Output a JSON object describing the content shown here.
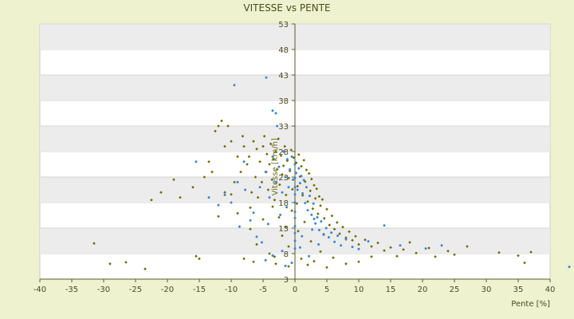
{
  "chart_data": {
    "type": "scatter",
    "title": "VITESSE vs PENTE",
    "xlabel": "Pente [%]",
    "ylabel": "Vitesse [km/h]",
    "xlim": [
      -40,
      40
    ],
    "ylim": [
      3,
      53
    ],
    "xticks": [
      "-40",
      "-35",
      "-30",
      "-25",
      "-20",
      "-15",
      "-10",
      "-5",
      "0",
      "5",
      "10",
      "15",
      "20",
      "25",
      "30",
      "35",
      "40"
    ],
    "yticks": [
      "3",
      "8",
      "13",
      "18",
      "23",
      "28",
      "33",
      "38",
      "43",
      "48",
      "53"
    ],
    "grid": "alternating horizontal bands",
    "legend": "none",
    "series": [
      {
        "color": "#6b6b00",
        "marker": "diamond",
        "points": [
          [
            -31.5,
            10
          ],
          [
            -29,
            6
          ],
          [
            -26.5,
            6.3
          ],
          [
            -23.5,
            5
          ],
          [
            -22.5,
            18.5
          ],
          [
            -21,
            20
          ],
          [
            -19,
            22.5
          ],
          [
            -18,
            19
          ],
          [
            -16,
            21
          ],
          [
            -15.5,
            7.5
          ],
          [
            -15,
            7
          ],
          [
            -14.2,
            23
          ],
          [
            -13.5,
            26
          ],
          [
            -13,
            24
          ],
          [
            -12.5,
            32
          ],
          [
            -12,
            33
          ],
          [
            -11.5,
            34
          ],
          [
            -11,
            29
          ],
          [
            -11,
            20
          ],
          [
            -10.5,
            33
          ],
          [
            -10,
            30
          ],
          [
            -9.5,
            22
          ],
          [
            -9,
            27
          ],
          [
            -8.5,
            24
          ],
          [
            -8.2,
            31
          ],
          [
            -8,
            29
          ],
          [
            -7.5,
            25.5
          ],
          [
            -7.2,
            27
          ],
          [
            -7,
            17
          ],
          [
            -6.8,
            20
          ],
          [
            -6.5,
            30
          ],
          [
            -6.2,
            23
          ],
          [
            -6,
            28.5
          ],
          [
            -5.8,
            19
          ],
          [
            -5.5,
            26
          ],
          [
            -5.2,
            22
          ],
          [
            -5,
            29
          ],
          [
            -4.8,
            31
          ],
          [
            -4.6,
            24
          ],
          [
            -4.4,
            27.5
          ],
          [
            -4.2,
            20.5
          ],
          [
            -4,
            25.5
          ],
          [
            -3.8,
            29.5
          ],
          [
            -3.6,
            22.5
          ],
          [
            -3.4,
            26.5
          ],
          [
            -3.2,
            18.5
          ],
          [
            -3,
            28
          ],
          [
            -2.8,
            24.5
          ],
          [
            -2.6,
            30.5
          ],
          [
            -2.4,
            21.5
          ],
          [
            -2.2,
            27.2
          ],
          [
            -2,
            23.5
          ],
          [
            -1.8,
            25.2
          ],
          [
            -1.6,
            29
          ],
          [
            -1.4,
            19.5
          ],
          [
            -1.2,
            26.2
          ],
          [
            -1,
            22.8
          ],
          [
            -0.8,
            24.2
          ],
          [
            -0.6,
            28.3
          ],
          [
            -0.4,
            20.6
          ],
          [
            -0.2,
            26.8
          ],
          [
            0.2,
            25.8
          ],
          [
            0.4,
            21.2
          ],
          [
            0.6,
            27.4
          ],
          [
            0.8,
            23.1
          ],
          [
            1,
            25.1
          ],
          [
            1.2,
            19.4
          ],
          [
            1.4,
            26.3
          ],
          [
            1.6,
            22.1
          ],
          [
            1.8,
            24.4
          ],
          [
            2,
            18.2
          ],
          [
            2.2,
            23.7
          ],
          [
            2.4,
            20.3
          ],
          [
            2.6,
            22.6
          ],
          [
            2.8,
            16.8
          ],
          [
            3,
            21.4
          ],
          [
            3.2,
            18.8
          ],
          [
            3.4,
            20.7
          ],
          [
            3.6,
            15.8
          ],
          [
            3.8,
            19.2
          ],
          [
            4,
            17.4
          ],
          [
            4.3,
            18.6
          ],
          [
            4.6,
            14.9
          ],
          [
            5,
            16.7
          ],
          [
            5.4,
            13.6
          ],
          [
            5.8,
            15.4
          ],
          [
            6.2,
            12.8
          ],
          [
            6.6,
            14.1
          ],
          [
            7,
            11.9
          ],
          [
            7.5,
            13.2
          ],
          [
            8,
            11.1
          ],
          [
            8.5,
            12.3
          ],
          [
            9,
            10.6
          ],
          [
            9.5,
            11.4
          ],
          [
            10,
            9.8
          ],
          [
            11,
            10.7
          ],
          [
            12,
            9.4
          ],
          [
            13,
            10.1
          ],
          [
            14,
            8.6
          ],
          [
            15,
            9.2
          ],
          [
            16,
            7.5
          ],
          [
            17,
            8.8
          ],
          [
            18,
            10.2
          ],
          [
            19,
            8.1
          ],
          [
            21,
            9.1
          ],
          [
            22,
            7.4
          ],
          [
            24,
            8.5
          ],
          [
            25,
            7.8
          ],
          [
            27,
            9.4
          ],
          [
            32,
            8.2
          ],
          [
            35,
            7.6
          ],
          [
            36,
            6.2
          ],
          [
            37,
            8.3
          ],
          [
            -3,
            6
          ],
          [
            -4,
            8
          ],
          [
            -1,
            5.5
          ],
          [
            1,
            7
          ],
          [
            2,
            5.8
          ],
          [
            3,
            6.5
          ],
          [
            4,
            8.4
          ],
          [
            5,
            5.3
          ],
          [
            6,
            7.2
          ],
          [
            8,
            6
          ],
          [
            10,
            6.4
          ],
          [
            12,
            7.4
          ],
          [
            -2,
            11.5
          ],
          [
            -1.5,
            13.2
          ],
          [
            0.5,
            12.4
          ],
          [
            1.5,
            14.2
          ],
          [
            -0.5,
            16.4
          ],
          [
            -2.5,
            15.1
          ],
          [
            -5,
            14.7
          ],
          [
            -7,
            12.8
          ],
          [
            -9,
            15.9
          ],
          [
            -3.5,
            17.2
          ],
          [
            -12,
            15.3
          ],
          [
            -10,
            19.6
          ],
          [
            -6,
            9.8
          ],
          [
            -8,
            7
          ],
          [
            -1,
            9.4
          ],
          [
            -6.5,
            6.4
          ],
          [
            -3.2,
            7.4
          ],
          [
            0.3,
            17.8
          ],
          [
            2.5,
            10.4
          ],
          [
            4.5,
            11.8
          ]
        ]
      },
      {
        "color": "#3a86d6",
        "marker": "dot",
        "points": [
          [
            -9.5,
            41
          ],
          [
            -4.5,
            42.5
          ],
          [
            -3.5,
            36
          ],
          [
            -3,
            35.5
          ],
          [
            -2.8,
            33
          ],
          [
            -15.5,
            26
          ],
          [
            -13.5,
            19
          ],
          [
            -12,
            17.5
          ],
          [
            -11,
            19.5
          ],
          [
            -10,
            18
          ],
          [
            -9,
            22
          ],
          [
            -8,
            26
          ],
          [
            -7,
            14.5
          ],
          [
            -6.5,
            16
          ],
          [
            -5.5,
            21
          ],
          [
            -4.5,
            24
          ],
          [
            -4,
            19
          ],
          [
            -3.5,
            27
          ],
          [
            -3,
            22
          ],
          [
            -2.5,
            25
          ],
          [
            -2,
            20
          ],
          [
            -1.8,
            28
          ],
          [
            -1.5,
            23
          ],
          [
            -1.2,
            26.5
          ],
          [
            -1,
            21
          ],
          [
            -0.8,
            24.5
          ],
          [
            -0.5,
            27
          ],
          [
            -0.3,
            22.5
          ],
          [
            0,
            25.5
          ],
          [
            0.2,
            23.8
          ],
          [
            0.4,
            20.5
          ],
          [
            0.6,
            24.7
          ],
          [
            0.8,
            21.8
          ],
          [
            1,
            23.2
          ],
          [
            1.2,
            19.8
          ],
          [
            1.4,
            22.4
          ],
          [
            1.6,
            17.9
          ],
          [
            1.8,
            21
          ],
          [
            2,
            16.5
          ],
          [
            2.3,
            19.3
          ],
          [
            2.6,
            15.6
          ],
          [
            2.9,
            17.8
          ],
          [
            3.2,
            13.9
          ],
          [
            3.5,
            15.1
          ],
          [
            3.8,
            12.6
          ],
          [
            4.1,
            14.3
          ],
          [
            4.5,
            11.7
          ],
          [
            4.9,
            13
          ],
          [
            5.3,
            11.2
          ],
          [
            5.7,
            12.1
          ],
          [
            6.2,
            10.3
          ],
          [
            6.7,
            11.5
          ],
          [
            7.2,
            9.6
          ],
          [
            8,
            10.8
          ],
          [
            9,
            9.3
          ],
          [
            10,
            8.9
          ],
          [
            11.5,
            10.4
          ],
          [
            14,
            13.5
          ],
          [
            16.5,
            9.6
          ],
          [
            20.5,
            9
          ],
          [
            23,
            9.6
          ],
          [
            43,
            5.4
          ],
          [
            -2,
            8.5
          ],
          [
            -0.5,
            6.2
          ],
          [
            0.8,
            9.2
          ],
          [
            2.2,
            7.5
          ],
          [
            3.7,
            9.8
          ],
          [
            -1.5,
            5.6
          ],
          [
            -3.5,
            7.6
          ],
          [
            -6,
            11.3
          ],
          [
            0,
            15
          ],
          [
            0,
            12
          ],
          [
            0,
            9
          ],
          [
            0,
            18
          ],
          [
            0,
            21
          ],
          [
            0,
            13.4
          ],
          [
            0,
            10.5
          ],
          [
            0,
            16.2
          ],
          [
            0,
            19.6
          ],
          [
            0,
            22.8
          ],
          [
            -5.2,
            10.2
          ],
          [
            -4.2,
            13.8
          ],
          [
            1.1,
            11.4
          ],
          [
            2.7,
            12.7
          ],
          [
            -1.3,
            17.1
          ],
          [
            -2.3,
            15.6
          ],
          [
            3,
            14.8
          ],
          [
            -7.8,
            20.5
          ],
          [
            -8.7,
            13.3
          ],
          [
            -4.6,
            6.7
          ]
        ]
      }
    ]
  }
}
